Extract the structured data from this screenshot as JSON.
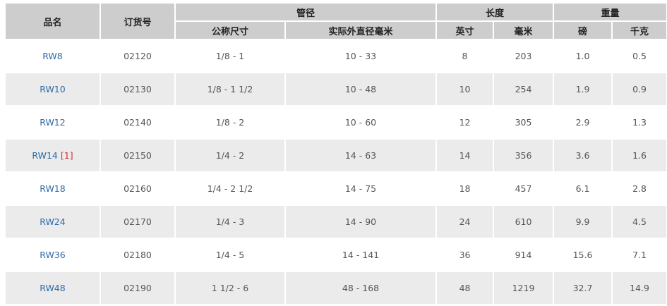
{
  "headers": {
    "name": "品名",
    "order": "订货号",
    "pipe": "管径",
    "nominal": "公称尺寸",
    "od_mm": "实际外直径毫米",
    "length": "长度",
    "in": "英寸",
    "mm": "毫米",
    "weight": "重量",
    "lb": "磅",
    "kg": "千克"
  },
  "rows": [
    {
      "name": "RW8",
      "note": "",
      "order": "02120",
      "nominal": "1/8 - 1",
      "od": "10 - 33",
      "in": "8",
      "mm": "203",
      "lb": "1.0",
      "kg": "0.5"
    },
    {
      "name": "RW10",
      "note": "",
      "order": "02130",
      "nominal": "1/8 - 1 1/2",
      "od": "10 - 48",
      "in": "10",
      "mm": "254",
      "lb": "1.9",
      "kg": "0.9"
    },
    {
      "name": "RW12",
      "note": "",
      "order": "02140",
      "nominal": "1/8 - 2",
      "od": "10 - 60",
      "in": "12",
      "mm": "305",
      "lb": "2.9",
      "kg": "1.3"
    },
    {
      "name": "RW14",
      "note": "[1]",
      "order": "02150",
      "nominal": "1/4 - 2",
      "od": "14 - 63",
      "in": "14",
      "mm": "356",
      "lb": "3.6",
      "kg": "1.6"
    },
    {
      "name": "RW18",
      "note": "",
      "order": "02160",
      "nominal": "1/4 - 2 1/2",
      "od": "14 - 75",
      "in": "18",
      "mm": "457",
      "lb": "6.1",
      "kg": "2.8"
    },
    {
      "name": "RW24",
      "note": "",
      "order": "02170",
      "nominal": "1/4 - 3",
      "od": "14 - 90",
      "in": "24",
      "mm": "610",
      "lb": "9.9",
      "kg": "4.5"
    },
    {
      "name": "RW36",
      "note": "",
      "order": "02180",
      "nominal": "1/4 - 5",
      "od": "14 - 141",
      "in": "36",
      "mm": "914",
      "lb": "15.6",
      "kg": "7.1"
    },
    {
      "name": "RW48",
      "note": "",
      "order": "02190",
      "nominal": "1 1/2 - 6",
      "od": "48 - 168",
      "in": "48",
      "mm": "1219",
      "lb": "32.7",
      "kg": "14.9"
    }
  ],
  "colors": {
    "header_bg": "#cdcdcd",
    "stripe": "#ebebeb",
    "link": "#2f6aa8",
    "note": "#d0303a"
  }
}
